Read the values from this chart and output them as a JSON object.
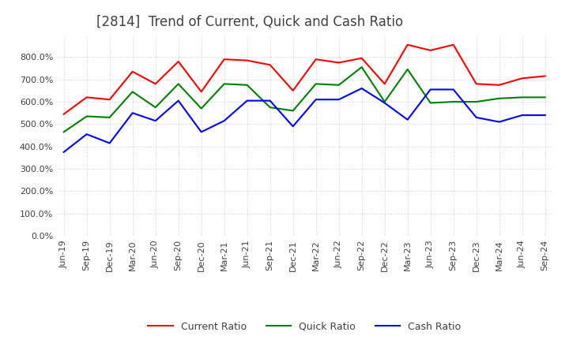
{
  "title": "[2814]  Trend of Current, Quick and Cash Ratio",
  "title_color": "#404040",
  "title_fontsize": 12,
  "background_color": "#ffffff",
  "grid_color": "#cccccc",
  "x_labels": [
    "Jun-19",
    "Sep-19",
    "Dec-19",
    "Mar-20",
    "Jun-20",
    "Sep-20",
    "Dec-20",
    "Mar-21",
    "Jun-21",
    "Sep-21",
    "Dec-21",
    "Mar-22",
    "Jun-22",
    "Sep-22",
    "Dec-22",
    "Mar-23",
    "Jun-23",
    "Sep-23",
    "Dec-23",
    "Mar-24",
    "Jun-24",
    "Sep-24"
  ],
  "current_ratio": [
    545,
    620,
    610,
    735,
    680,
    780,
    645,
    790,
    785,
    765,
    650,
    790,
    775,
    795,
    680,
    855,
    830,
    855,
    680,
    675,
    705,
    715
  ],
  "quick_ratio": [
    465,
    535,
    530,
    645,
    575,
    680,
    570,
    680,
    675,
    575,
    560,
    680,
    675,
    755,
    600,
    745,
    595,
    600,
    600,
    615,
    620,
    620
  ],
  "cash_ratio": [
    375,
    455,
    415,
    550,
    515,
    605,
    465,
    515,
    605,
    605,
    490,
    610,
    610,
    660,
    595,
    520,
    655,
    655,
    530,
    510,
    540,
    540
  ],
  "current_color": "#ff0000",
  "quick_color": "#008000",
  "cash_color": "#0000ff",
  "ylim": [
    0,
    900
  ],
  "yticks": [
    0,
    100,
    200,
    300,
    400,
    500,
    600,
    700,
    800
  ],
  "line_width": 1.5,
  "legend_fontsize": 9,
  "tick_fontsize": 8,
  "fig_width": 7.2,
  "fig_height": 4.4
}
